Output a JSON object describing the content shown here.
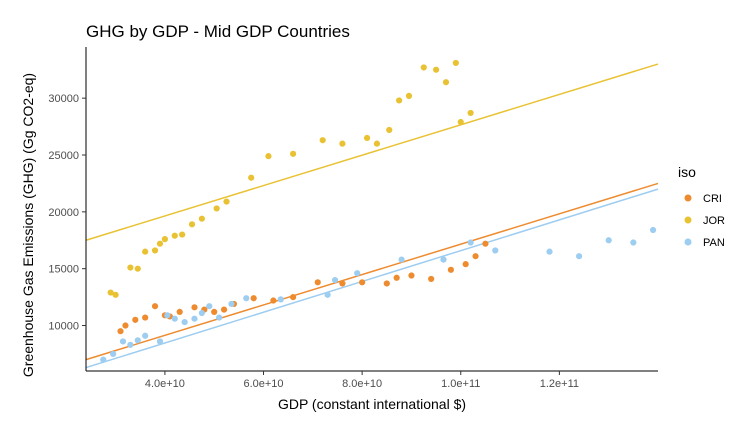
{
  "chart_data": {
    "type": "scatter",
    "title": "GHG by GDP - Mid GDP Countries",
    "xlabel": "GDP (constant international $)",
    "ylabel": "Greenhouse Gas Emissions (GHG) (Gg CO2-eq)",
    "xlim": [
      24000000000.0,
      140000000000.0
    ],
    "ylim": [
      6000,
      34500
    ],
    "x_ticks": [
      {
        "value": 40000000000.0,
        "label": "4.0e+10"
      },
      {
        "value": 60000000000.0,
        "label": "6.0e+10"
      },
      {
        "value": 80000000000.0,
        "label": "8.0e+10"
      },
      {
        "value": 100000000000.0,
        "label": "1.0e+11"
      },
      {
        "value": 120000000000.0,
        "label": "1.2e+11"
      }
    ],
    "y_ticks": [
      {
        "value": 10000,
        "label": "10000"
      },
      {
        "value": 15000,
        "label": "15000"
      },
      {
        "value": 20000,
        "label": "20000"
      },
      {
        "value": 25000,
        "label": "25000"
      },
      {
        "value": 30000,
        "label": "30000"
      }
    ],
    "grid": false,
    "legend": {
      "title": "iso",
      "position": "right"
    },
    "series": [
      {
        "name": "CRI",
        "color": "#EE8B2F",
        "trend": [
          [
            24000000000.0,
            7000
          ],
          [
            140000000000.0,
            22500
          ]
        ],
        "points": [
          [
            31000000000.0,
            9500
          ],
          [
            32000000000.0,
            10000
          ],
          [
            34000000000.0,
            10500
          ],
          [
            36000000000.0,
            10700
          ],
          [
            38000000000.0,
            11700
          ],
          [
            40000000000.0,
            10900
          ],
          [
            41000000000.0,
            10800
          ],
          [
            43000000000.0,
            11200
          ],
          [
            46000000000.0,
            11600
          ],
          [
            48000000000.0,
            11400
          ],
          [
            50000000000.0,
            11200
          ],
          [
            52000000000.0,
            11400
          ],
          [
            54000000000.0,
            11900
          ],
          [
            58000000000.0,
            12400
          ],
          [
            62000000000.0,
            12200
          ],
          [
            66000000000.0,
            12500
          ],
          [
            71000000000.0,
            13800
          ],
          [
            76000000000.0,
            13700
          ],
          [
            80000000000.0,
            13800
          ],
          [
            85000000000.0,
            13700
          ],
          [
            87000000000.0,
            14200
          ],
          [
            90000000000.0,
            14400
          ],
          [
            94000000000.0,
            14100
          ],
          [
            98000000000.0,
            14900
          ],
          [
            101000000000.0,
            15400
          ],
          [
            103000000000.0,
            16100
          ],
          [
            105000000000.0,
            17200
          ]
        ]
      },
      {
        "name": "JOR",
        "color": "#E9C234",
        "trend": [
          [
            24000000000.0,
            17500
          ],
          [
            140000000000.0,
            33000
          ]
        ],
        "points": [
          [
            29000000000.0,
            12900
          ],
          [
            30000000000.0,
            12700
          ],
          [
            33000000000.0,
            15100
          ],
          [
            34500000000.0,
            15000
          ],
          [
            36000000000.0,
            16500
          ],
          [
            38000000000.0,
            16600
          ],
          [
            39000000000.0,
            17200
          ],
          [
            40000000000.0,
            17600
          ],
          [
            42000000000.0,
            17900
          ],
          [
            43500000000.0,
            18000
          ],
          [
            45500000000.0,
            18900
          ],
          [
            47500000000.0,
            19400
          ],
          [
            50500000000.0,
            20300
          ],
          [
            52500000000.0,
            20900
          ],
          [
            57500000000.0,
            23000
          ],
          [
            61000000000.0,
            24900
          ],
          [
            66000000000.0,
            25100
          ],
          [
            72000000000.0,
            26300
          ],
          [
            76000000000.0,
            26000
          ],
          [
            81000000000.0,
            26500
          ],
          [
            83000000000.0,
            26000
          ],
          [
            85500000000.0,
            27200
          ],
          [
            87500000000.0,
            29800
          ],
          [
            89500000000.0,
            30200
          ],
          [
            92500000000.0,
            32700
          ],
          [
            95000000000.0,
            32500
          ],
          [
            97000000000.0,
            31400
          ],
          [
            99000000000.0,
            33100
          ],
          [
            100000000000.0,
            27900
          ],
          [
            102000000000.0,
            28700
          ]
        ]
      },
      {
        "name": "PAN",
        "color": "#9DCDF0",
        "trend": [
          [
            24000000000.0,
            6300
          ],
          [
            140000000000.0,
            22000
          ]
        ],
        "points": [
          [
            27500000000.0,
            7000
          ],
          [
            29500000000.0,
            7500
          ],
          [
            31500000000.0,
            8600
          ],
          [
            33000000000.0,
            8300
          ],
          [
            34500000000.0,
            8700
          ],
          [
            36000000000.0,
            9100
          ],
          [
            39000000000.0,
            8600
          ],
          [
            40500000000.0,
            10900
          ],
          [
            42000000000.0,
            10600
          ],
          [
            44000000000.0,
            10300
          ],
          [
            46000000000.0,
            10600
          ],
          [
            47500000000.0,
            11100
          ],
          [
            49000000000.0,
            11700
          ],
          [
            51000000000.0,
            10700
          ],
          [
            53500000000.0,
            11900
          ],
          [
            56500000000.0,
            12400
          ],
          [
            63500000000.0,
            12300
          ],
          [
            73000000000.0,
            12700
          ],
          [
            74500000000.0,
            14000
          ],
          [
            79000000000.0,
            14600
          ],
          [
            88000000000.0,
            15800
          ],
          [
            96500000000.0,
            15800
          ],
          [
            102000000000.0,
            17300
          ],
          [
            107000000000.0,
            16600
          ],
          [
            118000000000.0,
            16500
          ],
          [
            124000000000.0,
            16100
          ],
          [
            130000000000.0,
            17500
          ],
          [
            135000000000.0,
            17300
          ],
          [
            139000000000.0,
            18400
          ]
        ]
      }
    ]
  }
}
